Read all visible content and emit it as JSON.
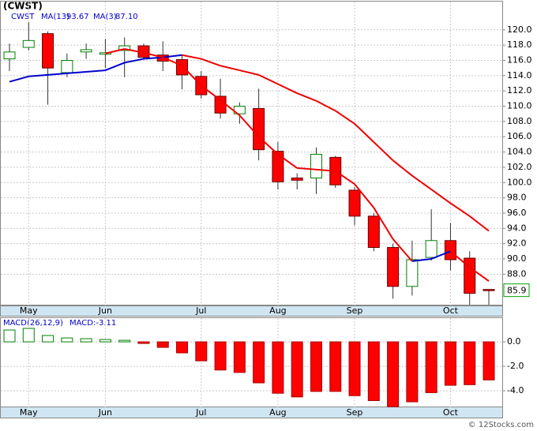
{
  "chart_data": [
    {
      "type": "candlestick",
      "title": "(CWST)",
      "legend_texts": [
        "CWST",
        "MA(13)",
        "93.67",
        "MA(3)",
        "87.10"
      ],
      "categories": [
        null,
        "May",
        null,
        null,
        null,
        "Jun",
        null,
        null,
        null,
        null,
        "Jul",
        null,
        null,
        null,
        "Aug",
        null,
        null,
        null,
        "Sep",
        null,
        null,
        null,
        null,
        "Oct",
        null,
        null
      ],
      "open": [
        116.2,
        117.7,
        119.5,
        114.4,
        117.1,
        116.8,
        117.3,
        117.9,
        116.7,
        116.1,
        113.9,
        111.3,
        109.0,
        109.7,
        104.1,
        100.6,
        100.6,
        103.3,
        99.0,
        95.6,
        91.5,
        86.4,
        90.2,
        92.4,
        90.1,
        86.0
      ],
      "high": [
        118.2,
        121.0,
        119.8,
        116.9,
        118.2,
        118.8,
        119.0,
        118.2,
        118.5,
        116.7,
        114.6,
        113.6,
        110.5,
        112.3,
        105.3,
        101.2,
        104.6,
        103.5,
        99.4,
        96.0,
        92.0,
        92.4,
        96.5,
        94.7,
        91.0,
        86.0
      ],
      "low": [
        114.6,
        117.3,
        110.2,
        113.8,
        116.2,
        115.0,
        113.8,
        116.2,
        114.6,
        112.2,
        111.0,
        108.4,
        107.7,
        102.9,
        99.1,
        99.1,
        98.5,
        99.3,
        94.4,
        91.0,
        84.8,
        85.2,
        89.8,
        88.5,
        84.0,
        84.0
      ],
      "close": [
        117.1,
        118.6,
        115.0,
        116.0,
        117.4,
        117.0,
        117.9,
        116.4,
        115.9,
        114.1,
        111.5,
        109.1,
        110.0,
        104.3,
        100.1,
        100.3,
        103.7,
        99.7,
        95.6,
        91.5,
        86.4,
        89.9,
        92.4,
        89.9,
        85.5,
        85.9
      ],
      "up_color": "#008000",
      "down_color": "#ff0000",
      "series": [
        {
          "name": "MA(13)",
          "values": [
            113.2,
            113.9,
            114.1,
            114.3,
            114.5,
            114.7,
            115.7,
            116.2,
            116.4,
            116.7,
            116.2,
            115.3,
            114.7,
            114.1,
            112.9,
            111.7,
            110.7,
            109.4,
            107.7,
            105.3,
            102.9,
            100.9,
            99.1,
            97.3,
            95.6,
            93.67
          ],
          "segment_colors": [
            "#0000cc",
            "#0000cc",
            "#0000cc",
            "#0000cc",
            "#0000cc",
            "#0000cc",
            "#0000cc",
            "#0000cc",
            "#0000cc",
            "#ee0000",
            "#ee0000",
            "#ee0000",
            "#ee0000",
            "#ee0000",
            "#ee0000",
            "#ee0000",
            "#ee0000",
            "#ee0000",
            "#ee0000",
            "#ee0000",
            "#ee0000",
            "#ee0000",
            "#ee0000",
            "#ee0000",
            "#ee0000",
            "#ee0000"
          ]
        },
        {
          "name": "MA(3)",
          "values": [
            null,
            null,
            null,
            null,
            null,
            116.9,
            117.5,
            117.0,
            116.4,
            115.3,
            112.7,
            110.8,
            108.8,
            106.0,
            103.7,
            101.9,
            101.7,
            101.5,
            99.8,
            96.7,
            92.6,
            89.7,
            90.0,
            91.0,
            88.9,
            87.1
          ],
          "segment_colors": [
            "#ee0000",
            "#ee0000",
            "#ee0000",
            "#ee0000",
            "#ee0000",
            "#ee0000",
            "#ee0000",
            "#ee0000",
            "#ee0000",
            "#ee0000",
            "#ee0000",
            "#ee0000",
            "#ee0000",
            "#ee0000",
            "#ee0000",
            "#ee0000",
            "#ee0000",
            "#ee0000",
            "#ee0000",
            "#ee0000",
            "#ee0000",
            "#0000cc",
            "#0000cc",
            "#ee0000",
            "#ee0000",
            "#ee0000"
          ]
        }
      ],
      "last_price": 85.9,
      "ylim": [
        83.9,
        123.7
      ],
      "yticks": [
        {
          "value": 88,
          "label": "88.0"
        },
        {
          "value": 90,
          "label": "90.0"
        },
        {
          "value": 92,
          "label": "92.0"
        },
        {
          "value": 94,
          "label": "94.0"
        },
        {
          "value": 96,
          "label": "96.0"
        },
        {
          "value": 98,
          "label": "98.0"
        },
        {
          "value": 100,
          "label": "100.0"
        },
        {
          "value": 102,
          "label": "102.0"
        },
        {
          "value": 104,
          "label": "104.0"
        },
        {
          "value": 106,
          "label": "106.0"
        },
        {
          "value": 108,
          "label": "108.0"
        },
        {
          "value": 110,
          "label": "110.0"
        },
        {
          "value": 112,
          "label": "112.0"
        },
        {
          "value": 114,
          "label": "114.0"
        },
        {
          "value": 116,
          "label": "116.0"
        },
        {
          "value": 118,
          "label": "118.0"
        },
        {
          "value": 120,
          "label": "120.0"
        }
      ],
      "grid": true
    },
    {
      "type": "bar",
      "legend_texts": [
        "MACD(26,12,9)",
        "MACD:-3.11"
      ],
      "categories": [
        null,
        "May",
        null,
        null,
        null,
        "Jun",
        null,
        null,
        null,
        null,
        "Jul",
        null,
        null,
        null,
        "Aug",
        null,
        null,
        null,
        "Sep",
        null,
        null,
        null,
        null,
        "Oct",
        null,
        null
      ],
      "values": [
        0.97,
        1.1,
        0.52,
        0.32,
        0.26,
        0.19,
        0.13,
        -0.13,
        -0.45,
        -0.9,
        -1.55,
        -2.3,
        -2.5,
        -3.35,
        -4.2,
        -4.5,
        -4.05,
        -4.05,
        -4.4,
        -4.8,
        -5.3,
        -4.9,
        -4.15,
        -3.55,
        -3.5,
        -3.11
      ],
      "up_color": "#008000",
      "down_color": "#ff0000",
      "ylim": [
        -5.35,
        1.94
      ],
      "yticks": [
        {
          "value": 0,
          "label": "0.0"
        },
        {
          "value": -2,
          "label": "-2.0"
        },
        {
          "value": -4,
          "label": "-4.0"
        }
      ],
      "grid": true
    }
  ],
  "footer": "© 12Stocks.com"
}
